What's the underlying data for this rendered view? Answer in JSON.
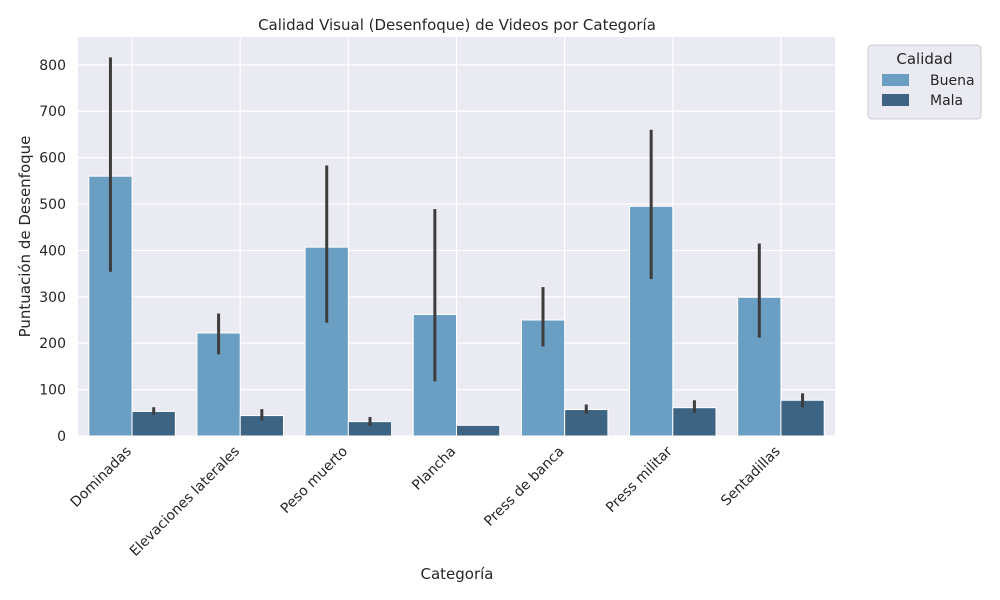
{
  "chart_data": {
    "type": "bar",
    "title": "Calidad Visual (Desenfoque) de Videos por Categoría",
    "xlabel": "Categoría",
    "ylabel": "Puntuación de Desenfoque",
    "ylim": [
      0,
      860
    ],
    "yticks": [
      0,
      100,
      200,
      300,
      400,
      500,
      600,
      700,
      800
    ],
    "grid": true,
    "categories": [
      "Dominadas",
      "Elevaciones laterales",
      "Peso muerto",
      "Plancha",
      "Press de banca",
      "Press militar",
      "Sentadillas"
    ],
    "legend": {
      "title": "Calidad",
      "position": "upper right, outside plot"
    },
    "series": [
      {
        "name": "Buena",
        "color": "#6a9fc3",
        "values": [
          560,
          222,
          407,
          262,
          250,
          495,
          299
        ],
        "ci_low": [
          354,
          176,
          244,
          118,
          193,
          338,
          212
        ],
        "ci_high": [
          816,
          264,
          583,
          489,
          321,
          660,
          415
        ]
      },
      {
        "name": "Mala",
        "color": "#3d6483",
        "values": [
          53,
          44,
          31,
          23,
          57,
          61,
          77
        ],
        "ci_low": [
          46,
          33,
          22,
          23,
          48,
          50,
          62
        ],
        "ci_high": [
          62,
          58,
          41,
          23,
          68,
          77,
          92
        ]
      }
    ]
  }
}
